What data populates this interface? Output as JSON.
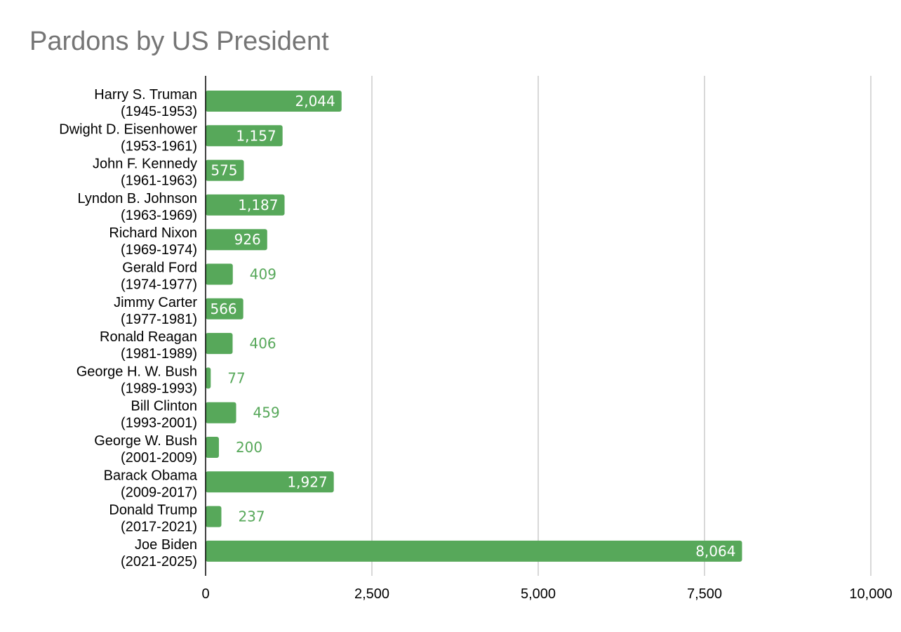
{
  "title": "Pardons by US President",
  "colors": {
    "bar": "#57a85a",
    "label_inside": "#ffffff",
    "label_outside": "#57a85a",
    "grid": "#cccccc",
    "axis": "#000000",
    "title": "#757575"
  },
  "chart_data": {
    "type": "bar",
    "orientation": "horizontal",
    "title": "Pardons by US President",
    "xlabel": "",
    "ylabel": "",
    "xlim": [
      0,
      10000
    ],
    "x_ticks": [
      0,
      2500,
      5000,
      7500,
      10000
    ],
    "x_tick_labels": [
      "0",
      "2,500",
      "5,000",
      "7,500",
      "10,000"
    ],
    "grid": true,
    "legend": "none",
    "categories": [
      [
        "Harry S. Truman",
        "(1945-1953)"
      ],
      [
        "Dwight D. Eisenhower",
        "(1953-1961)"
      ],
      [
        "John F. Kennedy",
        "(1961-1963)"
      ],
      [
        "Lyndon B. Johnson",
        "(1963-1969)"
      ],
      [
        "Richard Nixon",
        "(1969-1974)"
      ],
      [
        "Gerald Ford",
        "(1974-1977)"
      ],
      [
        "Jimmy Carter",
        "(1977-1981)"
      ],
      [
        "Ronald Reagan",
        "(1981-1989)"
      ],
      [
        "George H. W. Bush",
        "(1989-1993)"
      ],
      [
        "Bill Clinton",
        "(1993-2001)"
      ],
      [
        "George W. Bush",
        "(2001-2009)"
      ],
      [
        "Barack Obama",
        "(2009-2017)"
      ],
      [
        "Donald Trump",
        "(2017-2021)"
      ],
      [
        "Joe Biden",
        "(2021-2025)"
      ]
    ],
    "values": [
      2044,
      1157,
      575,
      1187,
      926,
      409,
      566,
      406,
      77,
      459,
      200,
      1927,
      237,
      8064
    ],
    "data_labels": [
      "2,044",
      "1,157",
      "575",
      "1,187",
      "926",
      "409",
      "566",
      "406",
      "77",
      "459",
      "200",
      "1,927",
      "237",
      "8,064"
    ]
  }
}
